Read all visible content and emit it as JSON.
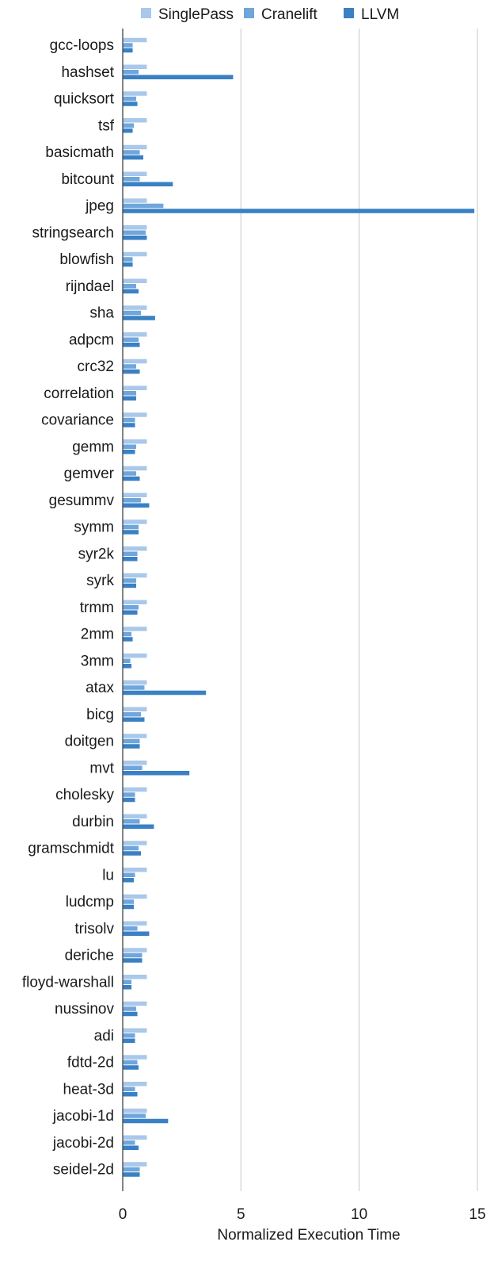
{
  "chart_data": {
    "type": "bar",
    "orientation": "horizontal",
    "categories": [
      "gcc-loops",
      "hashset",
      "quicksort",
      "tsf",
      "basicmath",
      "bitcount",
      "jpeg",
      "stringsearch",
      "blowfish",
      "rijndael",
      "sha",
      "adpcm",
      "crc32",
      "correlation",
      "covariance",
      "gemm",
      "gemver",
      "gesummv",
      "symm",
      "syr2k",
      "syrk",
      "trmm",
      "2mm",
      "3mm",
      "atax",
      "bicg",
      "doitgen",
      "mvt",
      "cholesky",
      "durbin",
      "gramschmidt",
      "lu",
      "ludcmp",
      "trisolv",
      "deriche",
      "floyd-warshall",
      "nussinov",
      "adi",
      "fdtd-2d",
      "heat-3d",
      "jacobi-1d",
      "jacobi-2d",
      "seidel-2d"
    ],
    "series": [
      {
        "name": "SinglePass",
        "color": "#a9c8ea",
        "values": [
          1,
          1,
          1,
          1,
          1,
          1,
          1,
          1,
          1,
          1,
          1,
          1,
          1,
          1,
          1,
          1,
          1,
          1,
          1,
          1,
          1,
          1,
          1,
          1,
          1,
          1,
          1,
          1,
          1,
          1,
          1,
          1,
          1,
          1,
          1,
          1,
          1,
          1,
          1,
          1,
          1,
          1,
          1
        ]
      },
      {
        "name": "Cranelift",
        "color": "#6fa6dc",
        "values": [
          0.4,
          0.65,
          0.55,
          0.45,
          0.7,
          0.7,
          1.7,
          0.95,
          0.4,
          0.55,
          0.75,
          0.65,
          0.55,
          0.55,
          0.5,
          0.55,
          0.55,
          0.75,
          0.65,
          0.6,
          0.55,
          0.65,
          0.35,
          0.3,
          0.9,
          0.75,
          0.7,
          0.8,
          0.5,
          0.7,
          0.65,
          0.5,
          0.45,
          0.6,
          0.8,
          0.35,
          0.55,
          0.5,
          0.6,
          0.5,
          0.95,
          0.5,
          0.7
        ]
      },
      {
        "name": "LLVM",
        "color": "#3a80c4",
        "values": [
          0.4,
          4.65,
          0.6,
          0.4,
          0.85,
          2.1,
          14.85,
          1.0,
          0.4,
          0.65,
          1.35,
          0.7,
          0.7,
          0.55,
          0.5,
          0.5,
          0.7,
          1.1,
          0.65,
          0.6,
          0.55,
          0.6,
          0.4,
          0.35,
          3.5,
          0.9,
          0.7,
          2.8,
          0.5,
          1.3,
          0.75,
          0.45,
          0.45,
          1.1,
          0.8,
          0.35,
          0.6,
          0.5,
          0.65,
          0.6,
          1.9,
          0.65,
          0.7
        ]
      }
    ],
    "xlabel": "Normalized Execution Time",
    "ylabel": "",
    "title": "",
    "xlim": [
      0,
      15
    ],
    "xticks": [
      "0",
      "5",
      "10",
      "15"
    ],
    "xtick_values": [
      0,
      5,
      10,
      15
    ],
    "grid": "vertical",
    "legend_position": "top"
  }
}
